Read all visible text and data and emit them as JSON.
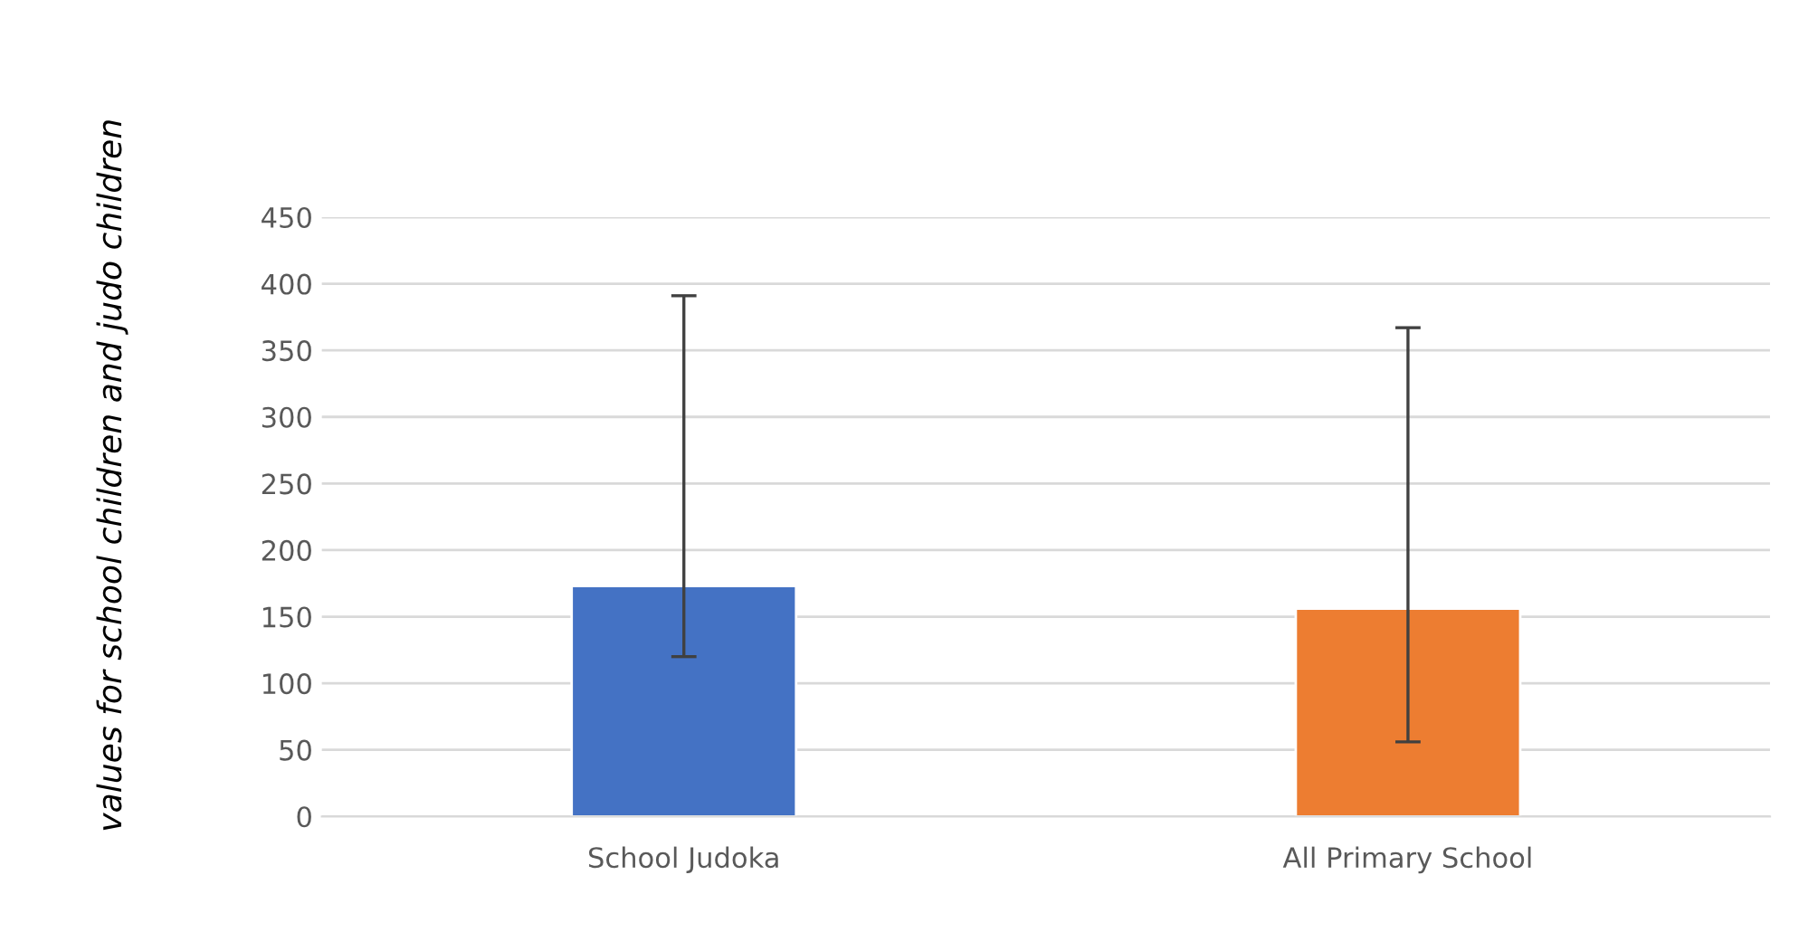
{
  "chart_data": {
    "type": "bar",
    "ylabel": "values for school children and judo children",
    "categories": [
      "School Judoka",
      "All Primary School"
    ],
    "values": [
      173,
      156
    ],
    "colors": [
      "#4472c4",
      "#ed7d31"
    ],
    "errors": [
      [
        120,
        391
      ],
      [
        56,
        367
      ]
    ],
    "ylim": [
      0,
      450
    ],
    "yticks": [
      0,
      50,
      100,
      150,
      200,
      250,
      300,
      350,
      400,
      450
    ],
    "grid": "y",
    "legend": false
  }
}
